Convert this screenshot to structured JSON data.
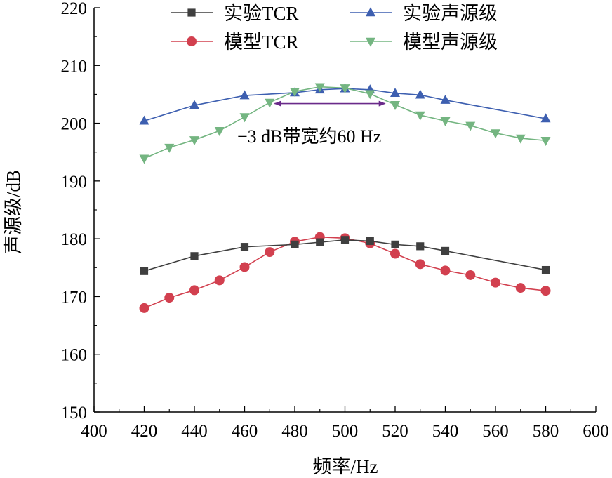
{
  "chart_data": {
    "type": "line",
    "title": "",
    "xlabel": "频率/Hz",
    "ylabel": "声源级/dB",
    "xlim": [
      400,
      600
    ],
    "ylim": [
      150,
      220
    ],
    "xticks": [
      400,
      420,
      440,
      460,
      480,
      500,
      520,
      540,
      560,
      580,
      600
    ],
    "yticks": [
      150,
      160,
      170,
      180,
      190,
      200,
      210,
      220
    ],
    "legend_position": "top",
    "series": [
      {
        "name": "实验TCR",
        "color": "#3f3f3f",
        "marker": "square",
        "x": [
          420,
          440,
          460,
          480,
          490,
          500,
          510,
          520,
          530,
          540,
          580
        ],
        "values": [
          174.4,
          177.0,
          178.6,
          179.0,
          179.4,
          179.8,
          179.6,
          179.0,
          178.7,
          177.9,
          174.6
        ]
      },
      {
        "name": "实验声源级",
        "color": "#3d5fb0",
        "marker": "triangle-up",
        "x": [
          420,
          440,
          460,
          480,
          490,
          500,
          510,
          520,
          530,
          540,
          580
        ],
        "values": [
          200.4,
          203.1,
          204.8,
          205.3,
          205.8,
          206.0,
          205.8,
          205.2,
          204.9,
          204.0,
          200.8
        ]
      },
      {
        "name": "模型TCR",
        "color": "#d2404f",
        "marker": "circle",
        "x": [
          420,
          430,
          440,
          450,
          460,
          470,
          480,
          490,
          500,
          510,
          520,
          530,
          540,
          550,
          560,
          570,
          580
        ],
        "values": [
          168.0,
          169.8,
          171.1,
          172.8,
          175.1,
          177.7,
          179.5,
          180.3,
          180.1,
          179.2,
          177.4,
          175.6,
          174.5,
          173.7,
          172.4,
          171.5,
          171.0
        ]
      },
      {
        "name": "模型声源级",
        "color": "#74b581",
        "marker": "triangle-down",
        "x": [
          420,
          430,
          440,
          450,
          460,
          470,
          480,
          490,
          500,
          510,
          520,
          530,
          540,
          550,
          560,
          570,
          580
        ],
        "values": [
          193.9,
          195.8,
          197.1,
          198.7,
          201.1,
          203.6,
          205.5,
          206.3,
          206.1,
          205.1,
          203.2,
          201.4,
          200.4,
          199.6,
          198.3,
          197.4,
          197.0
        ]
      }
    ],
    "annotation": {
      "text": "−3 dB带宽约60 Hz",
      "x_start": 472,
      "x_end": 516,
      "y": 203.4,
      "color": "#6a2a8a"
    }
  }
}
